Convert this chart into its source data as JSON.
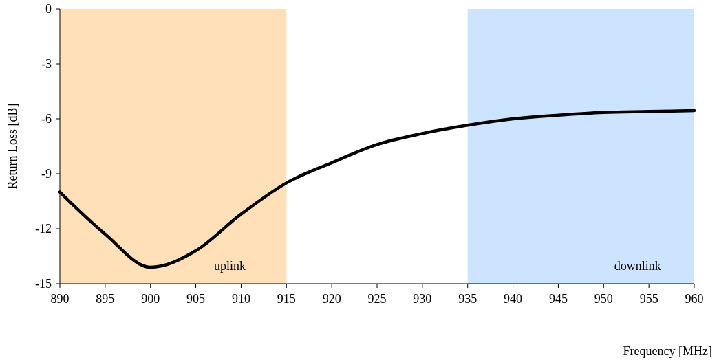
{
  "chart_data": {
    "type": "line",
    "xlabel": "Frequency [MHz]",
    "ylabel": "Return Loss [dB]",
    "x": [
      890,
      895,
      900,
      905,
      910,
      915,
      920,
      925,
      930,
      935,
      940,
      945,
      950,
      955,
      960
    ],
    "series": [
      {
        "color": "#000000",
        "values": [
          -10.0,
          -12.3,
          -14.1,
          -13.2,
          -11.2,
          -9.5,
          -8.4,
          -7.4,
          -6.8,
          -6.35,
          -6.0,
          -5.8,
          -5.65,
          -5.6,
          -5.55
        ]
      }
    ],
    "xlim": [
      890,
      960
    ],
    "xticks": [
      890,
      895,
      900,
      905,
      910,
      915,
      920,
      925,
      930,
      935,
      940,
      945,
      950,
      955,
      960
    ],
    "ylim": [
      -15,
      0
    ],
    "yticks": [
      -15,
      -12,
      -9,
      -6,
      -3,
      0
    ],
    "bands": [
      {
        "axis": "x",
        "from": 890,
        "to": 915,
        "label": "uplink",
        "color": "#ffe0b8"
      },
      {
        "axis": "x",
        "from": 935,
        "to": 960,
        "label": "downlink",
        "color": "#cce4ff"
      }
    ],
    "grid": false,
    "marker": "none",
    "line_style": "solid"
  }
}
